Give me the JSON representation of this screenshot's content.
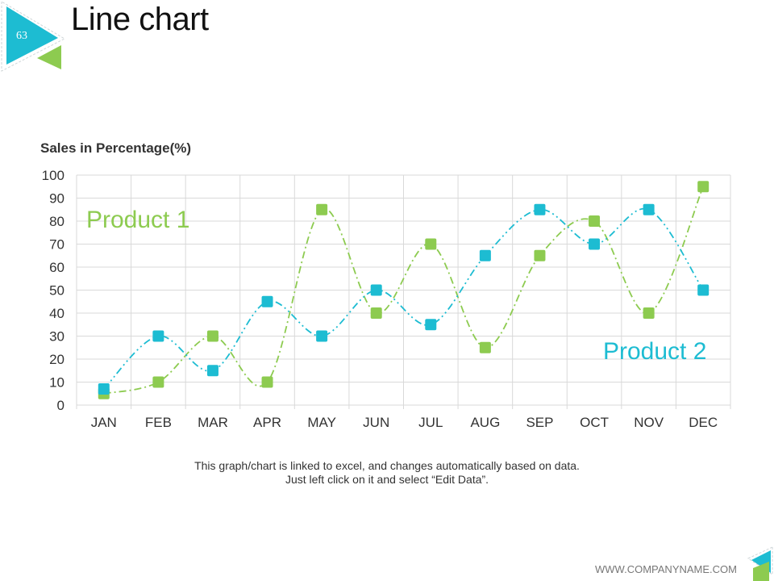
{
  "slide": {
    "page_number": "63",
    "title": "Line chart",
    "note_line1": "This graph/chart is linked to excel, and changes automatically based on data.",
    "note_line2": "Just left click on it and select “Edit Data”.",
    "footer": "WWW.COMPANYNAME.COM"
  },
  "colors": {
    "product1": "#8DCB50",
    "product2": "#1DBCD2",
    "grid": "#D9D9D9",
    "text": "#333333"
  },
  "chart_data": {
    "type": "line",
    "title": "Sales in Percentage(%)",
    "xlabel": "",
    "ylabel": "",
    "ylim": [
      0,
      100
    ],
    "yticks": [
      0,
      10,
      20,
      30,
      40,
      50,
      60,
      70,
      80,
      90,
      100
    ],
    "categories": [
      "JAN",
      "FEB",
      "MAR",
      "APR",
      "MAY",
      "JUN",
      "JUL",
      "AUG",
      "SEP",
      "OCT",
      "NOV",
      "DEC"
    ],
    "series": [
      {
        "name": "Product 1",
        "color": "#8DCB50",
        "values": [
          5,
          10,
          30,
          10,
          85,
          40,
          70,
          25,
          65,
          80,
          40,
          95
        ]
      },
      {
        "name": "Product 2",
        "color": "#1DBCD2",
        "values": [
          7,
          30,
          15,
          45,
          30,
          50,
          35,
          65,
          85,
          70,
          85,
          50
        ]
      }
    ]
  }
}
